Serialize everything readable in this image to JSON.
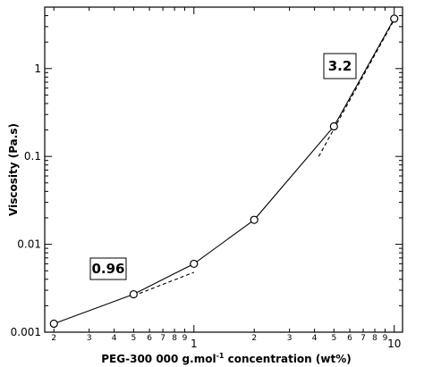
{
  "chart_data": {
    "type": "line",
    "xlabel_prefix": "PEG-300 000 g.mol",
    "xlabel_sup": "-1",
    "xlabel_suffix": " concentration (wt%)",
    "ylabel": "Viscosity (Pa.s)",
    "x_scale": "log",
    "y_scale": "log",
    "xlim": [
      0.18,
      11
    ],
    "ylim": [
      0.001,
      5
    ],
    "grid": false,
    "series": [
      {
        "marker": "open-circle",
        "x": [
          0.2,
          0.5,
          1,
          2,
          5,
          10
        ],
        "y": [
          0.00125,
          0.0027,
          0.006,
          0.019,
          0.22,
          3.7
        ]
      }
    ],
    "fits": [
      {
        "label": "0.96",
        "x": [
          0.5,
          1
        ],
        "y": [
          0.0026,
          0.0048
        ],
        "style": "dashed"
      },
      {
        "label": "3.2",
        "x": [
          4.2,
          10
        ],
        "y": [
          0.1,
          3.6
        ],
        "style": "dashed"
      }
    ],
    "x_major_ticks": [
      {
        "value": 1,
        "label": "1"
      },
      {
        "value": 10,
        "label": "10"
      }
    ],
    "x_minor_ticks": [
      {
        "value": 0.2,
        "label": "2"
      },
      {
        "value": 0.3,
        "label": "3"
      },
      {
        "value": 0.4,
        "label": "4"
      },
      {
        "value": 0.5,
        "label": "5"
      },
      {
        "value": 0.6,
        "label": "6"
      },
      {
        "value": 0.7,
        "label": "7"
      },
      {
        "value": 0.8,
        "label": "8"
      },
      {
        "value": 0.9,
        "label": "9"
      },
      {
        "value": 2,
        "label": "2"
      },
      {
        "value": 3,
        "label": "3"
      },
      {
        "value": 4,
        "label": "4"
      },
      {
        "value": 5,
        "label": "5"
      },
      {
        "value": 6,
        "label": "6"
      },
      {
        "value": 7,
        "label": "7"
      },
      {
        "value": 8,
        "label": "8"
      },
      {
        "value": 9,
        "label": "9"
      }
    ],
    "y_major_ticks": [
      {
        "value": 0.001,
        "label": "0.001"
      },
      {
        "value": 0.01,
        "label": "0.01"
      },
      {
        "value": 0.1,
        "label": "0.1"
      },
      {
        "value": 1,
        "label": "1"
      }
    ]
  }
}
